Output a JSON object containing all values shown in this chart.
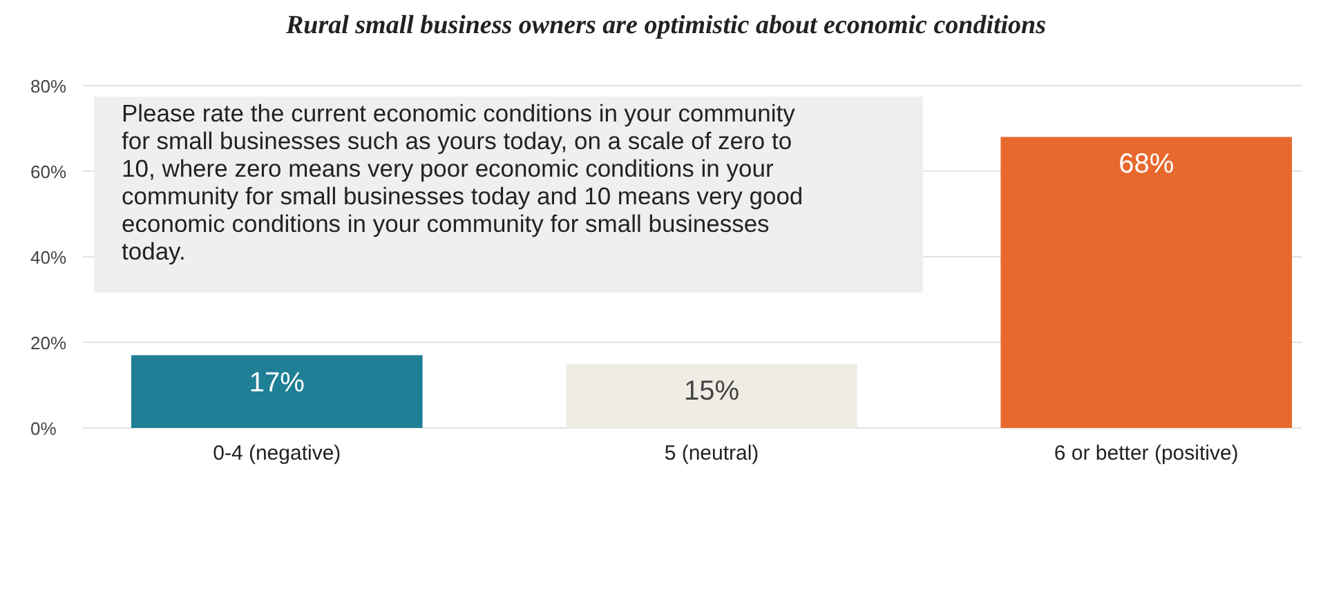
{
  "chart_data": {
    "type": "bar",
    "title": "Rural small business owners are optimistic about economic conditions",
    "categories": [
      "0-4 (negative)",
      "5 (neutral)",
      "6 or better (positive)"
    ],
    "values": [
      17,
      15,
      68
    ],
    "value_labels": [
      "17%",
      "15%",
      "68%"
    ],
    "colors": [
      "#1f7f96",
      "#efece4",
      "#e8692e"
    ],
    "ylim": [
      0,
      80
    ],
    "yticks": [
      {
        "value": 0,
        "label": "0%"
      },
      {
        "value": 20,
        "label": "20%"
      },
      {
        "value": 40,
        "label": "40%"
      },
      {
        "value": 60,
        "label": "60%"
      },
      {
        "value": 80,
        "label": "80%"
      }
    ],
    "grid": "y",
    "annotations": [
      "Please rate the current economic conditions in your community for small businesses such as yours today, on a scale of zero to 10, where zero means very poor economic conditions in your community for small businesses today and 10 means very good economic conditions in your community for small businesses today."
    ]
  }
}
